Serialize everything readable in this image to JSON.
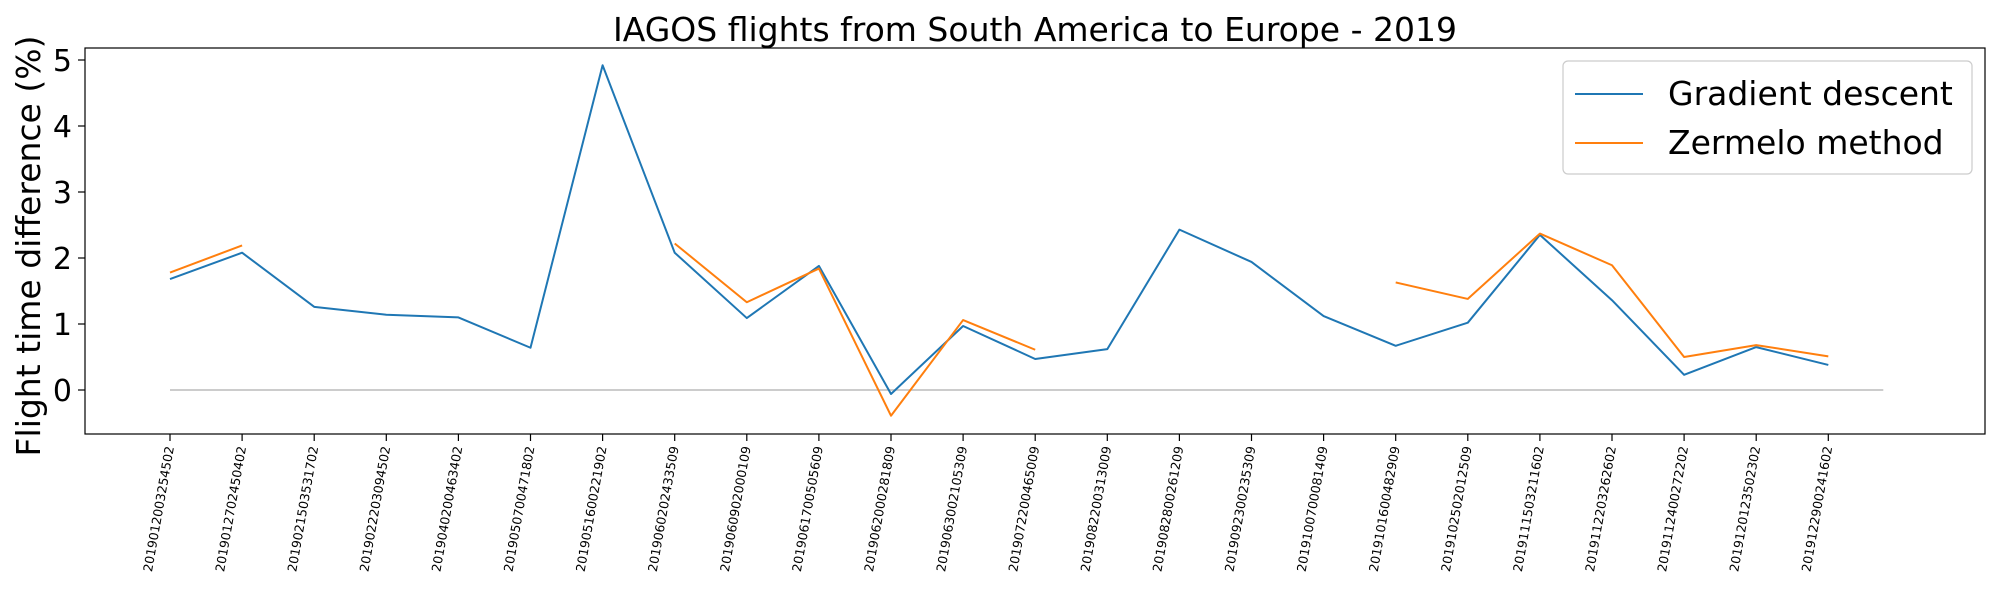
{
  "chart_data": {
    "type": "line",
    "title": "IAGOS flights from South America to Europe - 2019",
    "xlabel": "",
    "ylabel": "Flight time difference (%)",
    "ylim": [
      -0.65,
      5.15
    ],
    "yticks": [
      0,
      1,
      2,
      3,
      4,
      5
    ],
    "grid": false,
    "legend_position": "top-right",
    "categories": [
      "2019012003254502",
      "2019012702450402",
      "2019021503531702",
      "2019022203094502",
      "2019040200463402",
      "2019050700471802",
      "2019051600221902",
      "2019060202433509",
      "2019060902000109",
      "2019061700505609",
      "2019062000281809",
      "2019063002105309",
      "2019072200465009",
      "2019082200313009",
      "2019082800261209",
      "2019092300235309",
      "2019100700081409",
      "2019101600482909",
      "2019102502012509",
      "2019111503211602",
      "2019112203262602",
      "2019112400272202",
      "2019120123502302",
      "2019122900241602"
    ],
    "series": [
      {
        "name": "Gradient descent",
        "color": "#1f77b4",
        "values": [
          1.68,
          2.08,
          1.26,
          1.14,
          1.1,
          0.64,
          4.92,
          2.08,
          1.09,
          1.88,
          -0.06,
          0.97,
          0.47,
          0.62,
          2.43,
          1.94,
          1.12,
          0.67,
          1.02,
          2.35,
          1.36,
          0.23,
          0.65,
          0.38
        ]
      },
      {
        "name": "Zermelo method",
        "color": "#ff7f0e",
        "values": [
          1.78,
          2.19,
          null,
          null,
          null,
          null,
          null,
          2.22,
          1.33,
          1.84,
          -0.39,
          1.06,
          0.61,
          null,
          null,
          null,
          null,
          1.63,
          1.38,
          2.37,
          1.89,
          0.5,
          0.68,
          0.51
        ]
      }
    ],
    "reference_line": {
      "y": 0,
      "color": "#bbbbbb"
    }
  }
}
